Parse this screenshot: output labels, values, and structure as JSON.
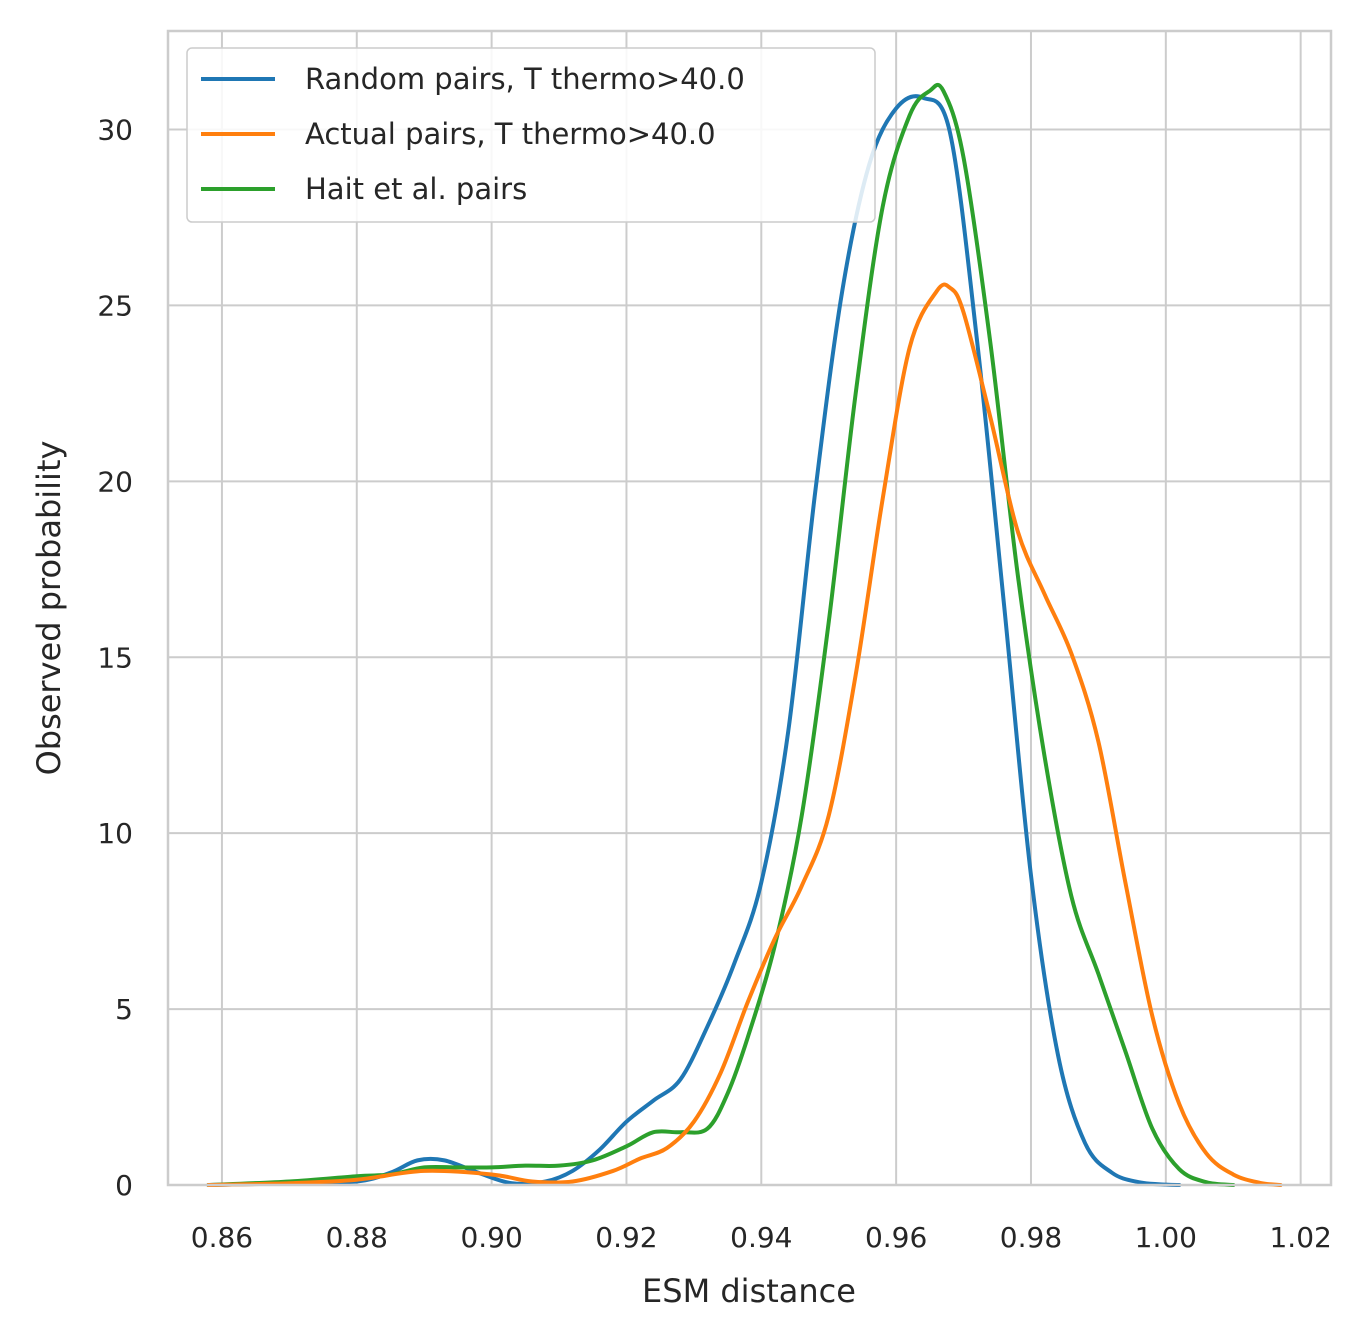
{
  "chart_data": {
    "type": "line",
    "title": "",
    "xlabel": "ESM distance",
    "ylabel": "Observed probability",
    "xlim": [
      0.852,
      1.0245
    ],
    "ylim": [
      0,
      32.8
    ],
    "xticks": [
      0.86,
      0.88,
      0.9,
      0.92,
      0.94,
      0.96,
      0.98,
      1.0,
      1.02
    ],
    "xtick_labels": [
      "0.86",
      "0.88",
      "0.90",
      "0.92",
      "0.94",
      "0.96",
      "0.98",
      "1.00",
      "1.02"
    ],
    "yticks": [
      0,
      5,
      10,
      15,
      20,
      25,
      30
    ],
    "ytick_labels": [
      "0",
      "5",
      "10",
      "15",
      "20",
      "25",
      "30"
    ],
    "grid": true,
    "legend_position": "top-left",
    "series": [
      {
        "name": "Random pairs, T thermo>40.0",
        "color": "#1f77b4",
        "x": [
          0.858,
          0.87,
          0.88,
          0.885,
          0.889,
          0.893,
          0.898,
          0.903,
          0.908,
          0.912,
          0.916,
          0.92,
          0.924,
          0.928,
          0.932,
          0.936,
          0.94,
          0.944,
          0.948,
          0.952,
          0.956,
          0.96,
          0.964,
          0.968,
          0.972,
          0.976,
          0.98,
          0.984,
          0.988,
          0.992,
          0.996,
          1.0,
          1.002
        ],
        "y": [
          0,
          0.05,
          0.1,
          0.35,
          0.7,
          0.7,
          0.35,
          0.05,
          0.1,
          0.4,
          1.0,
          1.8,
          2.4,
          3.0,
          4.5,
          6.3,
          8.6,
          12.9,
          19.7,
          25.4,
          29.0,
          30.6,
          30.9,
          29.9,
          24.0,
          16.5,
          8.8,
          3.7,
          1.2,
          0.35,
          0.08,
          0.01,
          0
        ]
      },
      {
        "name": "Actual pairs, T thermo>40.0",
        "color": "#ff7f0e",
        "x": [
          0.858,
          0.87,
          0.88,
          0.89,
          0.9,
          0.906,
          0.912,
          0.918,
          0.922,
          0.926,
          0.93,
          0.934,
          0.938,
          0.942,
          0.946,
          0.95,
          0.954,
          0.958,
          0.962,
          0.966,
          0.968,
          0.97,
          0.974,
          0.978,
          0.982,
          0.986,
          0.99,
          0.994,
          0.998,
          1.002,
          1.006,
          1.01,
          1.014,
          1.017
        ],
        "y": [
          0,
          0.05,
          0.15,
          0.4,
          0.3,
          0.1,
          0.1,
          0.4,
          0.75,
          1.05,
          1.8,
          3.2,
          5.2,
          7.0,
          8.5,
          10.5,
          14.5,
          19.5,
          23.8,
          25.4,
          25.5,
          24.8,
          21.8,
          18.6,
          16.8,
          15.1,
          12.6,
          8.6,
          4.8,
          2.3,
          0.9,
          0.3,
          0.06,
          0
        ]
      },
      {
        "name": "Hait et al. pairs",
        "color": "#2ca02c",
        "x": [
          0.858,
          0.87,
          0.88,
          0.885,
          0.89,
          0.895,
          0.9,
          0.905,
          0.91,
          0.915,
          0.92,
          0.924,
          0.928,
          0.932,
          0.935,
          0.938,
          0.942,
          0.946,
          0.95,
          0.954,
          0.958,
          0.962,
          0.965,
          0.967,
          0.97,
          0.974,
          0.978,
          0.982,
          0.986,
          0.99,
          0.994,
          0.998,
          1.002,
          1.006,
          1.01
        ],
        "y": [
          0,
          0.1,
          0.25,
          0.3,
          0.5,
          0.5,
          0.5,
          0.55,
          0.55,
          0.7,
          1.1,
          1.5,
          1.5,
          1.6,
          2.6,
          4.2,
          6.8,
          10.5,
          16.0,
          22.5,
          27.8,
          30.4,
          31.1,
          31.1,
          29.2,
          23.9,
          17.4,
          12.2,
          8.2,
          6.0,
          3.8,
          1.6,
          0.45,
          0.08,
          0
        ]
      }
    ]
  }
}
